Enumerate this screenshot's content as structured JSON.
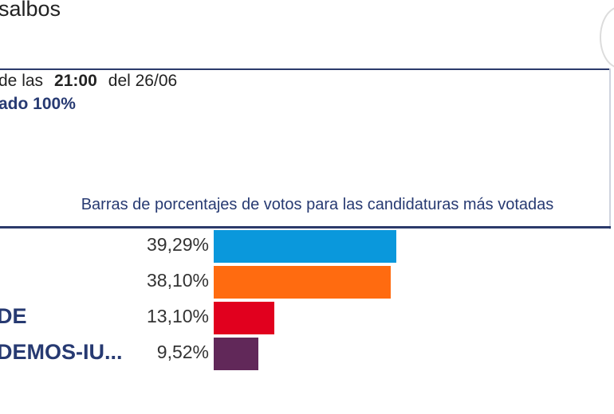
{
  "header": {
    "place_title": "salbos",
    "time_prefix": "de las",
    "time_value": "21:00",
    "date_text": "del 26/06",
    "scrutiny_text": "ado 100%"
  },
  "chart_caption": "Barras de porcentajes de votos para las candidaturas más votadas",
  "colors": {
    "navy": "#273a72",
    "pp": "#0a98dc",
    "cs": "#ff6b10",
    "psoe": "#e1001e",
    "podemos": "#612859"
  },
  "chart_data": {
    "type": "bar",
    "orientation": "horizontal",
    "title": "Barras de porcentajes de votos para las candidaturas más votadas",
    "categories": [
      "",
      "",
      "DE",
      "DEMOS-IU..."
    ],
    "values": [
      39.29,
      38.1,
      13.1,
      9.52
    ],
    "value_labels": [
      "39,29%",
      "38,10%",
      "13,10%",
      "9,52%"
    ],
    "colors": [
      "#0a98dc",
      "#ff6b10",
      "#e1001e",
      "#612859"
    ],
    "xlim": [
      0,
      100
    ]
  }
}
